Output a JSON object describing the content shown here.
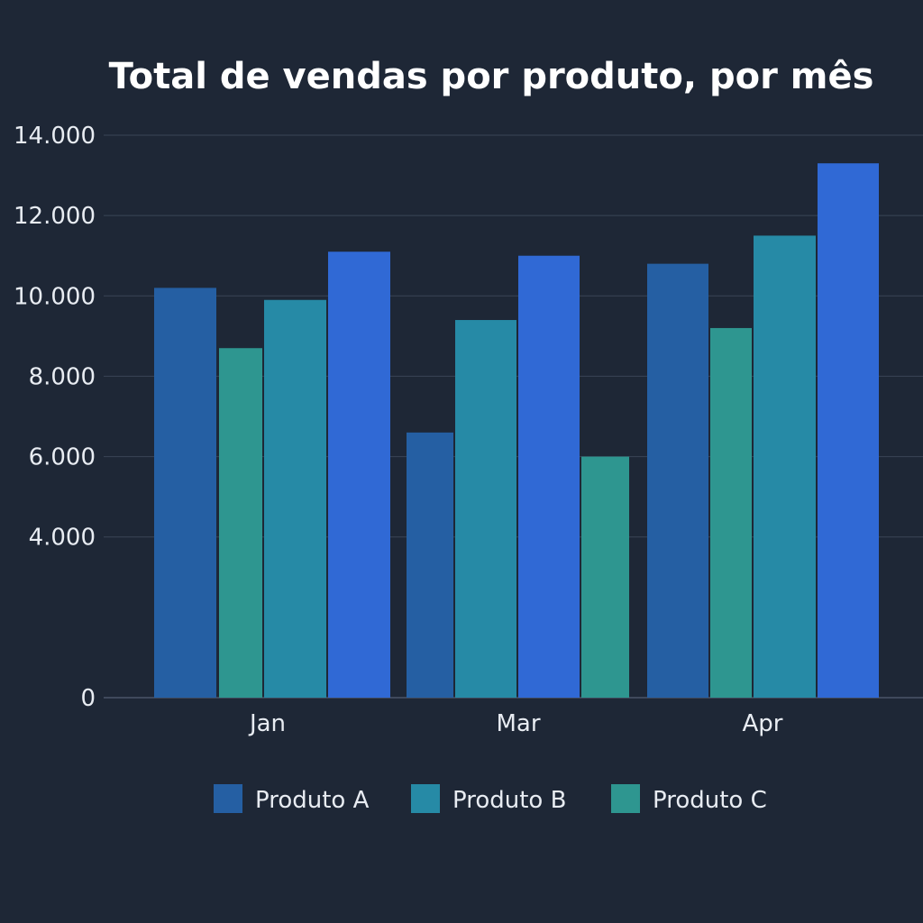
{
  "chart_data": {
    "type": "bar",
    "title": "Total de vendas por produto, por mês",
    "xlabel": "",
    "ylabel": "",
    "ylim": [
      0,
      14000
    ],
    "yticks": [
      0,
      4000,
      6000,
      8000,
      10000,
      12000,
      14000
    ],
    "ytick_labels": [
      "0",
      "4.000",
      "6.000",
      "8.000",
      "10.000",
      "12.000",
      "14.000"
    ],
    "grid": true,
    "legend_position": "bottom-center",
    "legend": [
      {
        "name": "Produto A",
        "color": "#255fa3"
      },
      {
        "name": "Produto B",
        "color": "#268aa6"
      },
      {
        "name": "Produto C",
        "color": "#2e9690"
      }
    ],
    "groups": [
      {
        "category": "Jan",
        "bars": [
          {
            "value": 10200,
            "color": "#255fa3"
          },
          {
            "value": 8700,
            "color": "#2e9690"
          },
          {
            "value": 9900,
            "color": "#268aa6"
          },
          {
            "value": 11100,
            "color": "#3069d5"
          }
        ]
      },
      {
        "category": "Mar",
        "bars": [
          {
            "value": 6600,
            "color": "#255fa3"
          },
          {
            "value": 9400,
            "color": "#268aa6"
          },
          {
            "value": 11000,
            "color": "#3069d5"
          },
          {
            "value": 6000,
            "color": "#2e9690"
          }
        ]
      },
      {
        "category": "Apr",
        "bars": [
          {
            "value": 10800,
            "color": "#255fa3"
          },
          {
            "value": 9200,
            "color": "#2e9690"
          },
          {
            "value": 11500,
            "color": "#268aa6"
          },
          {
            "value": 13300,
            "color": "#3069d5"
          }
        ]
      }
    ]
  },
  "colors": {
    "background": "#1e2736",
    "gridline": "#3a4557",
    "text": "#e8ecf2"
  }
}
